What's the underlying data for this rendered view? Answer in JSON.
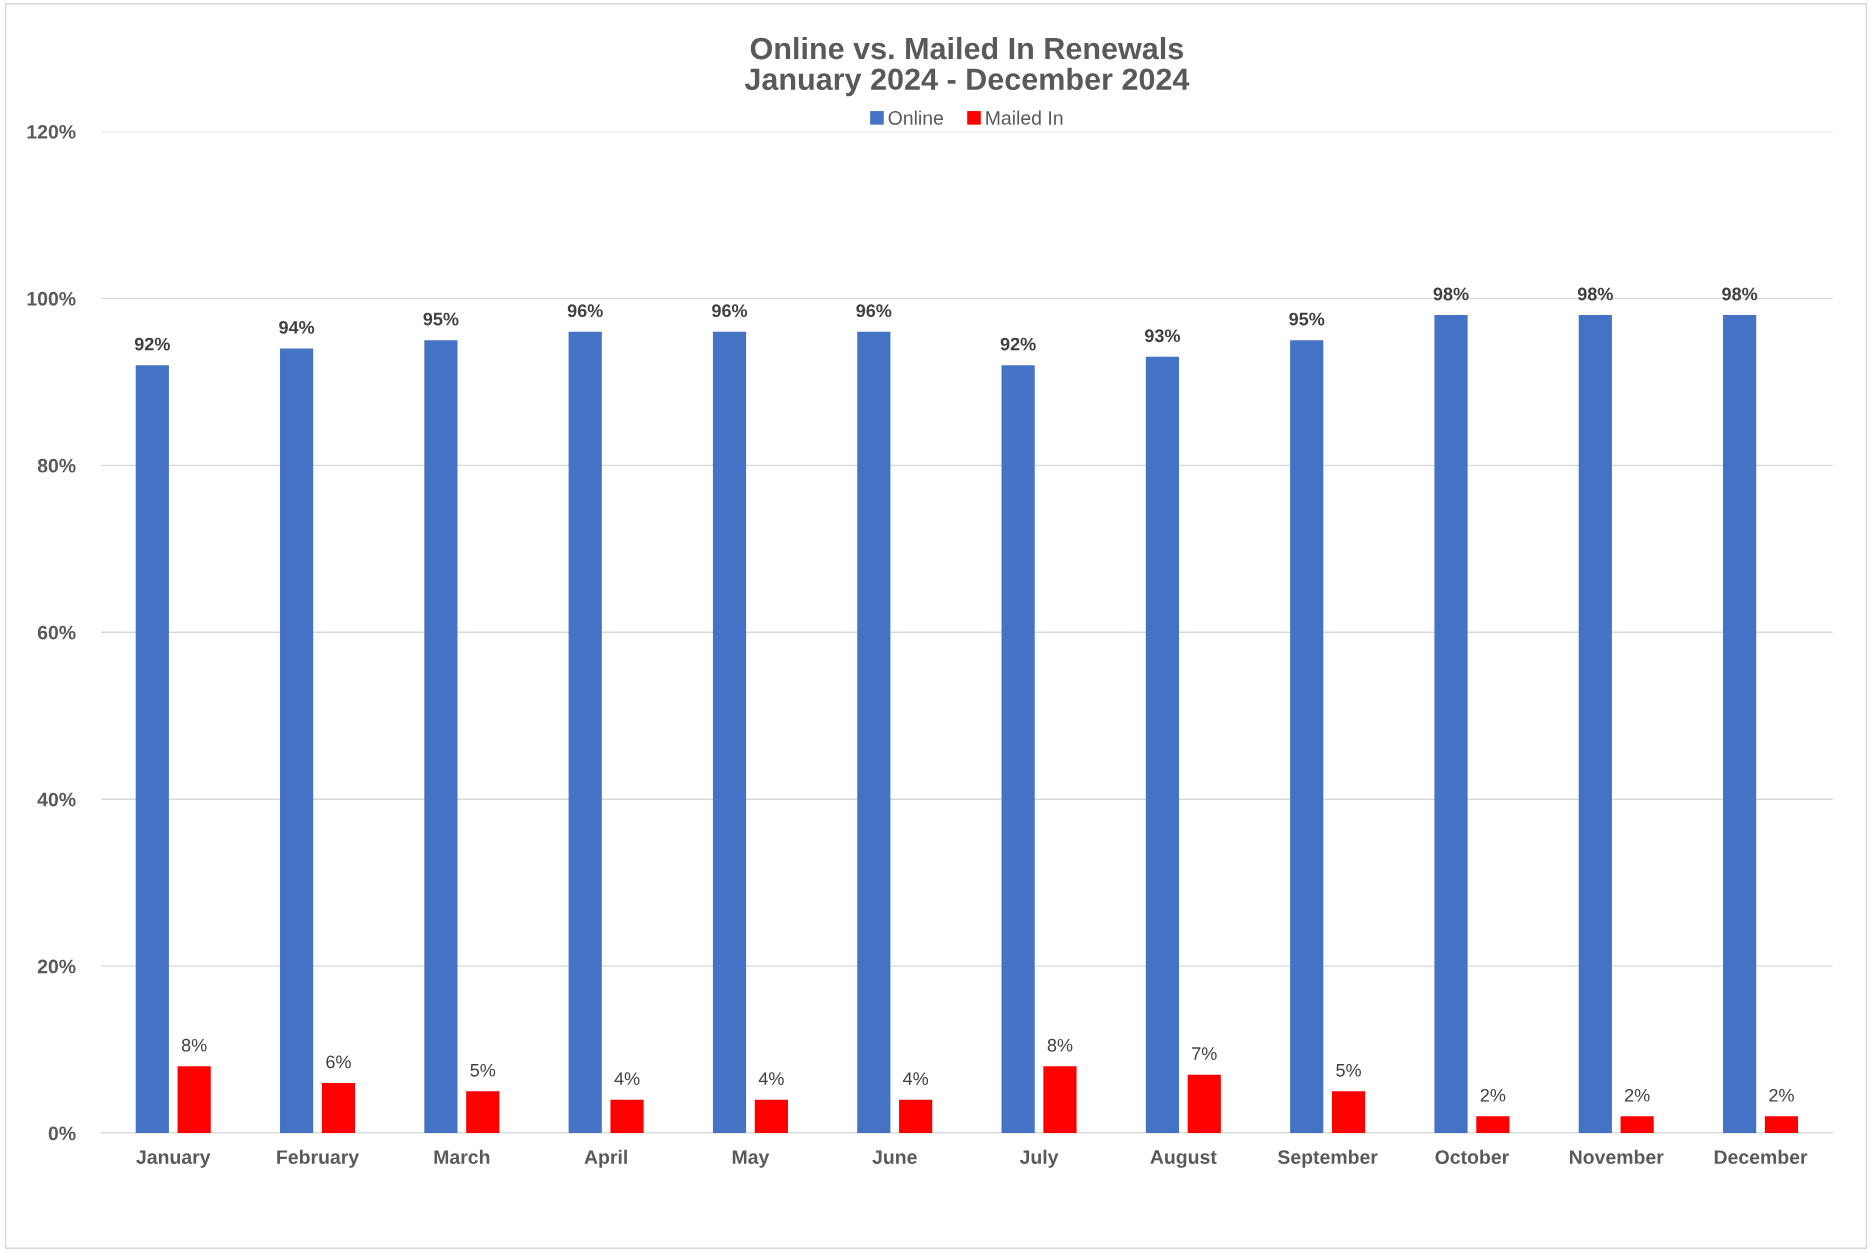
{
  "chart_data": {
    "type": "bar",
    "title": "Online vs. Mailed In Renewals\nJanuary 2024 - December 2024",
    "categories": [
      "January",
      "February",
      "March",
      "April",
      "May",
      "June",
      "July",
      "August",
      "September",
      "October",
      "November",
      "December"
    ],
    "series": [
      {
        "name": "Online",
        "color": "#4472c4",
        "values": [
          92,
          94,
          95,
          96,
          96,
          96,
          92,
          93,
          95,
          98,
          98,
          98
        ],
        "value_labels": [
          "92%",
          "94%",
          "95%",
          "96%",
          "96%",
          "96%",
          "92%",
          "93%",
          "95%",
          "98%",
          "98%",
          "98%"
        ]
      },
      {
        "name": "Mailed In",
        "color": "#ff0000",
        "values": [
          8,
          6,
          5,
          4,
          4,
          4,
          8,
          7,
          5,
          2,
          2,
          2
        ],
        "value_labels": [
          "8%",
          "6%",
          "5%",
          "4%",
          "4%",
          "4%",
          "8%",
          "7%",
          "5%",
          "2%",
          "2%",
          "2%"
        ]
      }
    ],
    "ylim": [
      0,
      120
    ],
    "yticks": [
      {
        "value": 0,
        "label": "0%"
      },
      {
        "value": 20,
        "label": "20%"
      },
      {
        "value": 40,
        "label": "40%"
      },
      {
        "value": 60,
        "label": "60%"
      },
      {
        "value": 80,
        "label": "80%"
      },
      {
        "value": 100,
        "label": "100%"
      },
      {
        "value": 120,
        "label": "120%"
      }
    ],
    "grid": "y",
    "legend": "top"
  }
}
